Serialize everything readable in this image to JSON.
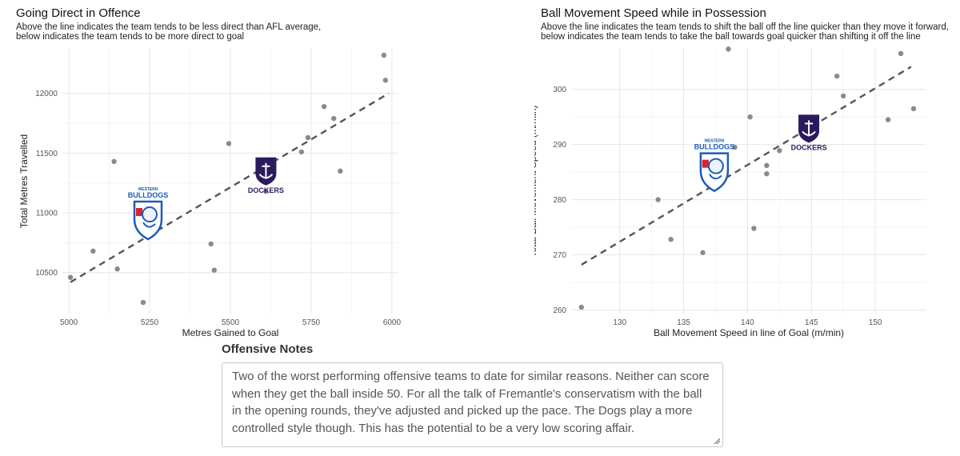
{
  "chart_data": [
    {
      "type": "scatter",
      "title": "Going Direct in Offence",
      "subtitle": [
        "Above the line indicates the team tends to be less direct than AFL average,",
        "below indicates the team tends to be more direct to goal"
      ],
      "xlabel": "Metres Gained to Goal",
      "ylabel": "Total Metres Travelled",
      "xlim": [
        4980,
        6020
      ],
      "ylim": [
        10150,
        12380
      ],
      "xticks": [
        5000,
        5250,
        5500,
        5750,
        6000
      ],
      "yticks": [
        10500,
        11000,
        11500,
        12000
      ],
      "x": [
        5005,
        5075,
        5140,
        5150,
        5230,
        5440,
        5450,
        5495,
        5610,
        5720,
        5740,
        5790,
        5820,
        5840,
        5975,
        5980
      ],
      "y": [
        10460,
        10680,
        11430,
        10530,
        10250,
        10740,
        10520,
        11580,
        11180,
        11510,
        11630,
        11890,
        11790,
        11350,
        12320,
        12110
      ],
      "fit_line": {
        "x": [
          5005,
          5990
        ],
        "y": [
          10420,
          12000
        ]
      },
      "team_logos": [
        {
          "team": "Western Bulldogs",
          "label_top": "WESTERN",
          "label_main": "BULLDOGS",
          "x": 5245,
          "y": 10960
        },
        {
          "team": "Fremantle",
          "label_main": "DOCKERS",
          "x": 5610,
          "y": 11330
        }
      ]
    },
    {
      "type": "scatter",
      "title": "Ball Movement Speed while in Possession",
      "subtitle": [
        "Above the line indicates the team tends to shift the ball off the line quicker than they move it forward,",
        "below indicates the team tends to take the ball towards goal quicker than shifting it off the line"
      ],
      "xlabel": "Ball Movement Speed in line of Goal (m/min)",
      "ylabel": "Total Ball Movement Speed (m/min)",
      "xlim": [
        126.2,
        154
      ],
      "ylim": [
        259.2,
        307.5
      ],
      "xticks": [
        130,
        135,
        140,
        145,
        150
      ],
      "yticks": [
        260,
        270,
        280,
        290,
        300
      ],
      "x": [
        127.0,
        133.0,
        134.0,
        136.5,
        138.5,
        139.0,
        140.2,
        140.5,
        141.5,
        141.5,
        142.5,
        147.0,
        147.5,
        151.0,
        152.0,
        153.0
      ],
      "y": [
        260.5,
        280.0,
        272.8,
        270.4,
        307.3,
        289.5,
        295.0,
        274.8,
        284.7,
        286.2,
        288.9,
        302.4,
        298.8,
        294.5,
        306.5,
        296.5
      ],
      "fit_line": {
        "x": [
          127,
          152.8
        ],
        "y": [
          268.2,
          304.1
        ]
      },
      "team_logos": [
        {
          "team": "Western Bulldogs",
          "label_top": "WESTERN",
          "label_main": "BULLDOGS",
          "x": 137.4,
          "y": 285.5
        },
        {
          "team": "Fremantle",
          "label_main": "DOCKERS",
          "x": 144.8,
          "y": 292.5
        }
      ]
    }
  ],
  "notes": {
    "heading": "Offensive Notes",
    "text": "Two of the worst performing offensive teams to date for similar reasons. Neither can score when they get the ball inside 50. For all the talk of Fremantle's conservatism with the ball in the opening rounds, they've adjusted and picked up the pace. The Dogs play a more controlled style though. This has the potential to be a very low scoring affair."
  },
  "colors": {
    "bulldogs_blue": "#1e5bb8",
    "bulldogs_red": "#d9232e",
    "dockers_purple": "#2a1a5e",
    "point_grey": "#8a8a8a",
    "fit_line": "#555555"
  }
}
